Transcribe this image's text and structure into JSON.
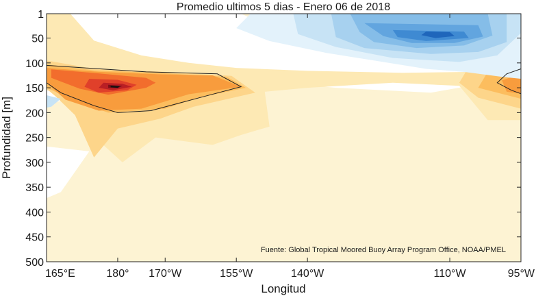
{
  "chart_data": {
    "type": "heatmap",
    "title": "Promedio ultimos 5 dias - Enero 06 de 2018",
    "xlabel": "Longitud",
    "ylabel": "Profundidad [m]",
    "annotation": "Fuente: Global Tropical Moored Buoy Array Program Office, NOAA/PMEL",
    "x_ticks": [
      {
        "value": 165,
        "label": "165°E"
      },
      {
        "value": 180,
        "label": "180°"
      },
      {
        "value": 190,
        "label": "170°W"
      },
      {
        "value": 205,
        "label": "155°W"
      },
      {
        "value": 220,
        "label": "140°W"
      },
      {
        "value": 250,
        "label": "110°W"
      },
      {
        "value": 265,
        "label": "95°W"
      }
    ],
    "y_ticks": [
      {
        "value": 1,
        "label": "1"
      },
      {
        "value": 50,
        "label": "50"
      },
      {
        "value": 100,
        "label": "100"
      },
      {
        "value": 150,
        "label": "150"
      },
      {
        "value": 200,
        "label": "200"
      },
      {
        "value": 250,
        "label": "250"
      },
      {
        "value": 300,
        "label": "300"
      },
      {
        "value": 350,
        "label": "350"
      },
      {
        "value": 400,
        "label": "400"
      },
      {
        "value": 450,
        "label": "450"
      },
      {
        "value": 500,
        "label": "500"
      }
    ],
    "xlim": [
      165,
      265
    ],
    "ylim": [
      1,
      500
    ],
    "y_reversed": true,
    "grid": false,
    "colors": {
      "warm": [
        "#fdf3d3",
        "#fde9b4",
        "#fdd58a",
        "#fcbd5e",
        "#f89c3d",
        "#f26d2d",
        "#e0402a",
        "#b91f24",
        "#7a1018",
        "#111111"
      ],
      "cool": [
        "#e3f2fb",
        "#c7e3f5",
        "#a7d1ef",
        "#85bde8",
        "#62a5df",
        "#3f8ad2",
        "#1f66bb"
      ]
    },
    "regions": [
      {
        "fill": "warm.0",
        "points": [
          [
            165,
            1
          ],
          [
            265,
            1
          ],
          [
            265,
            500
          ],
          [
            165,
            500
          ]
        ]
      },
      {
        "fill": "white",
        "points": [
          [
            170,
            1
          ],
          [
            206,
            1
          ],
          [
            211,
            22
          ],
          [
            245,
            32
          ],
          [
            265,
            40
          ],
          [
            265,
            128
          ],
          [
            246,
            160
          ],
          [
            226,
            150
          ],
          [
            201,
            128
          ],
          [
            187,
            122
          ],
          [
            176,
            112
          ],
          [
            169,
            85
          ],
          [
            165,
            40
          ]
        ]
      },
      {
        "fill": "white",
        "points": [
          [
            165,
            118
          ],
          [
            168,
            135
          ],
          [
            171,
            154
          ],
          [
            169,
            176
          ],
          [
            165,
            180
          ]
        ]
      },
      {
        "fill": "white",
        "points": [
          [
            165,
            268
          ],
          [
            174,
            278
          ],
          [
            168,
            360
          ],
          [
            165,
            372
          ]
        ]
      },
      {
        "fill": "warm.1",
        "points": [
          [
            165,
            1
          ],
          [
            170,
            1
          ],
          [
            175,
            55
          ],
          [
            185,
            85
          ],
          [
            195,
            100
          ],
          [
            205,
            110
          ],
          [
            220,
            116
          ],
          [
            240,
            120
          ],
          [
            255,
            118
          ],
          [
            265,
            96
          ],
          [
            265,
            215
          ],
          [
            258,
            215
          ],
          [
            252,
            146
          ],
          [
            238,
            140
          ],
          [
            220,
            150
          ],
          [
            211,
            158
          ],
          [
            212,
            228
          ],
          [
            206,
            245
          ],
          [
            200,
            265
          ],
          [
            188,
            250
          ],
          [
            181,
            300
          ],
          [
            175,
            248
          ],
          [
            172,
            205
          ],
          [
            170,
            165
          ],
          [
            165,
            155
          ]
        ]
      },
      {
        "fill": "warm.2",
        "points": [
          [
            165,
            95
          ],
          [
            175,
            112
          ],
          [
            190,
            118
          ],
          [
            204,
            126
          ],
          [
            209,
            160
          ],
          [
            196,
            188
          ],
          [
            189,
            212
          ],
          [
            180,
            232
          ],
          [
            175,
            290
          ],
          [
            171,
            205
          ],
          [
            167,
            168
          ],
          [
            165,
            152
          ]
        ]
      },
      {
        "fill": "warm.2",
        "points": [
          [
            265,
            96
          ],
          [
            254,
            108
          ],
          [
            252,
            140
          ],
          [
            256,
            170
          ],
          [
            265,
            192
          ]
        ]
      },
      {
        "fill": "warm.3",
        "points": [
          [
            165,
            103
          ],
          [
            175,
            115
          ],
          [
            188,
            120
          ],
          [
            203,
            128
          ],
          [
            207,
            150
          ],
          [
            197,
            170
          ],
          [
            190,
            192
          ],
          [
            178,
            200
          ],
          [
            172,
            180
          ],
          [
            165,
            150
          ]
        ]
      },
      {
        "fill": "warm.3",
        "points": [
          [
            265,
            108
          ],
          [
            258,
            118
          ],
          [
            256,
            150
          ],
          [
            265,
            172
          ]
        ]
      },
      {
        "fill": "warm.4",
        "points": [
          [
            165,
            110
          ],
          [
            176,
            118
          ],
          [
            189,
            123
          ],
          [
            200,
            125
          ],
          [
            206,
            148
          ],
          [
            195,
            163
          ],
          [
            185,
            192
          ],
          [
            176,
            196
          ],
          [
            169,
            174
          ],
          [
            165,
            140
          ]
        ]
      },
      {
        "fill": "warm.4",
        "points": [
          [
            265,
            122
          ],
          [
            261,
            135
          ],
          [
            262,
            158
          ],
          [
            265,
            162
          ]
        ]
      },
      {
        "fill": "warm.5",
        "points": [
          [
            166,
            113
          ],
          [
            176,
            121
          ],
          [
            186,
            130
          ],
          [
            188,
            140
          ],
          [
            186,
            150
          ],
          [
            178,
            164
          ],
          [
            172,
            152
          ],
          [
            166,
            130
          ]
        ]
      },
      {
        "fill": "warm.6",
        "points": [
          [
            174,
            132
          ],
          [
            180,
            134
          ],
          [
            184,
            144
          ],
          [
            182,
            155
          ],
          [
            176,
            160
          ],
          [
            173,
            148
          ]
        ]
      },
      {
        "fill": "warm.7",
        "points": [
          [
            177,
            140
          ],
          [
            181,
            142
          ],
          [
            183,
            148
          ],
          [
            179,
            155
          ],
          [
            176,
            150
          ]
        ]
      },
      {
        "fill": "warm.8",
        "points": [
          [
            178,
            144
          ],
          [
            181,
            146
          ],
          [
            180,
            151
          ],
          [
            178,
            150
          ]
        ]
      },
      {
        "fill": "warm.9",
        "points": [
          [
            178.5,
            146
          ],
          [
            180.5,
            147
          ],
          [
            180,
            150
          ],
          [
            178.5,
            149
          ]
        ]
      },
      {
        "fill": "cool.0",
        "points": [
          [
            208,
            1
          ],
          [
            265,
            1
          ],
          [
            265,
            132
          ],
          [
            261,
            128
          ],
          [
            253,
            118
          ],
          [
            245,
            112
          ],
          [
            234,
            95
          ],
          [
            224,
            80
          ],
          [
            212,
            56
          ],
          [
            205,
            30
          ]
        ]
      },
      {
        "fill": "cool.1",
        "points": [
          [
            217,
            1
          ],
          [
            265,
            1
          ],
          [
            265,
            40
          ],
          [
            260,
            85
          ],
          [
            252,
            98
          ],
          [
            238,
            90
          ],
          [
            226,
            68
          ],
          [
            218,
            42
          ]
        ]
      },
      {
        "fill": "cool.1",
        "points": [
          [
            165,
            165
          ],
          [
            168,
            172
          ],
          [
            166,
            188
          ],
          [
            165,
            190
          ]
        ]
      },
      {
        "fill": "cool.2",
        "points": [
          [
            225,
            1
          ],
          [
            262,
            1
          ],
          [
            262,
            58
          ],
          [
            256,
            78
          ],
          [
            246,
            82
          ],
          [
            232,
            70
          ],
          [
            226,
            48
          ]
        ]
      },
      {
        "fill": "cool.3",
        "points": [
          [
            229,
            1
          ],
          [
            258,
            1
          ],
          [
            259,
            45
          ],
          [
            253,
            65
          ],
          [
            243,
            70
          ],
          [
            234,
            58
          ],
          [
            231,
            38
          ]
        ]
      },
      {
        "fill": "cool.4",
        "points": [
          [
            232,
            20
          ],
          [
            256,
            24
          ],
          [
            257,
            47
          ],
          [
            251,
            60
          ],
          [
            242,
            60
          ],
          [
            236,
            46
          ]
        ]
      },
      {
        "fill": "cool.5",
        "points": [
          [
            238,
            34
          ],
          [
            253,
            37
          ],
          [
            254,
            50
          ],
          [
            245,
            56
          ],
          [
            239,
            48
          ]
        ]
      },
      {
        "fill": "cool.6",
        "points": [
          [
            245,
            37
          ],
          [
            250,
            38
          ],
          [
            251,
            46
          ],
          [
            247,
            50
          ],
          [
            244,
            44
          ]
        ]
      }
    ],
    "contour_lines": [
      {
        "points": [
          [
            165,
            105
          ],
          [
            186,
            118
          ],
          [
            201,
            122
          ],
          [
            206,
            148
          ],
          [
            198,
            168
          ],
          [
            187,
            196
          ],
          [
            180,
            200
          ],
          [
            175,
            186
          ],
          [
            168,
            160
          ],
          [
            165,
            140
          ]
        ]
      },
      {
        "points": [
          [
            265,
            112
          ],
          [
            262,
            122
          ],
          [
            260,
            140
          ],
          [
            263,
            155
          ],
          [
            265,
            162
          ]
        ]
      }
    ]
  }
}
